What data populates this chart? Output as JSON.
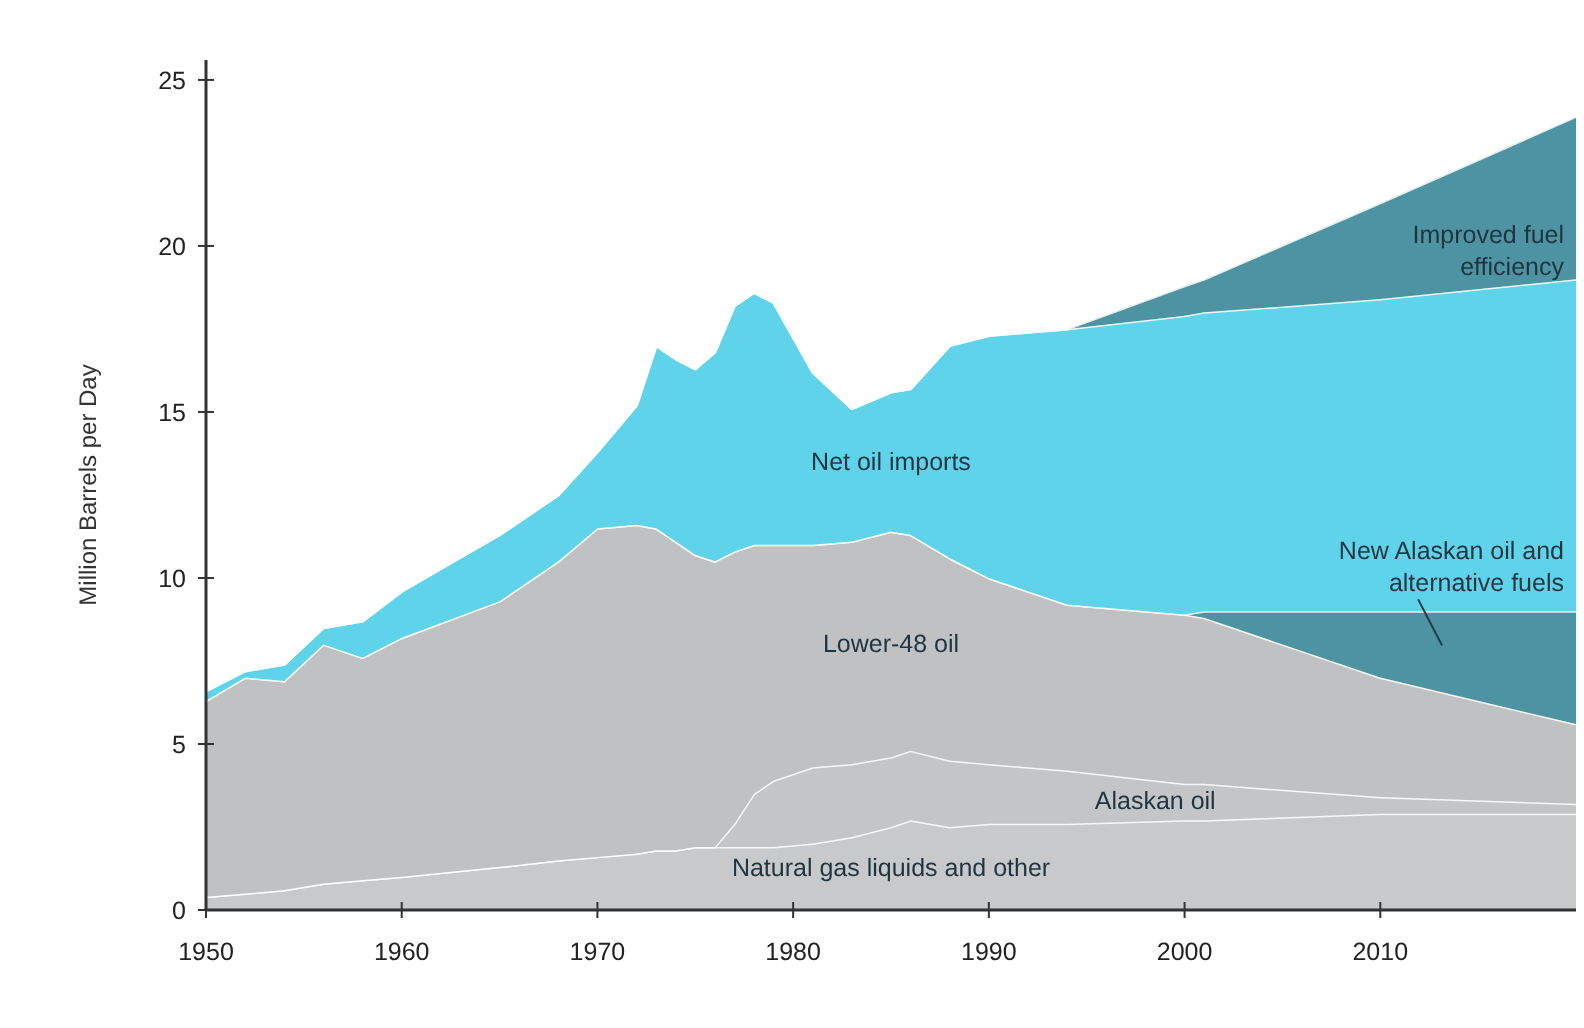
{
  "chart_data": {
    "type": "area",
    "stacked": true,
    "ylabel": "Million Barrels per Day",
    "x": [
      1950,
      1952,
      1954,
      1956,
      1958,
      1960,
      1965,
      1968,
      1970,
      1972,
      1973,
      1974,
      1975,
      1976,
      1977,
      1978,
      1979,
      1981,
      1983,
      1985,
      1986,
      1988,
      1990,
      1994,
      2000,
      2001,
      2010,
      2020
    ],
    "xlim": [
      1950,
      2020
    ],
    "xticks": [
      1950,
      1960,
      1970,
      1980,
      1990,
      2000,
      2010
    ],
    "ylim": [
      0,
      25.6
    ],
    "yticks": [
      0,
      5,
      10,
      15,
      20,
      25
    ],
    "series": [
      {
        "name": "Natural gas liquids and other",
        "color": "#c8c9ca",
        "values": [
          0.4,
          0.5,
          0.6,
          0.8,
          0.9,
          1.0,
          1.3,
          1.5,
          1.6,
          1.7,
          1.8,
          1.8,
          1.9,
          1.9,
          1.9,
          1.9,
          1.9,
          2.0,
          2.2,
          2.5,
          2.7,
          2.5,
          2.6,
          2.6,
          2.7,
          2.7,
          2.9,
          2.9
        ]
      },
      {
        "name": "Alaskan oil",
        "color": "#c4c5c6",
        "values": [
          0,
          0,
          0,
          0,
          0,
          0,
          0,
          0,
          0,
          0,
          0,
          0,
          0,
          0,
          0.7,
          1.6,
          2.0,
          2.3,
          2.2,
          2.1,
          2.1,
          2.0,
          1.8,
          1.6,
          1.1,
          1.1,
          0.5,
          0.3
        ]
      },
      {
        "name": "Lower-48 oil",
        "color": "#c0c1c2",
        "values": [
          5.9,
          6.5,
          6.3,
          7.2,
          6.7,
          7.2,
          8.0,
          9.0,
          9.9,
          9.9,
          9.7,
          9.3,
          8.8,
          8.6,
          8.2,
          7.5,
          7.1,
          6.7,
          6.7,
          6.8,
          6.5,
          6.1,
          5.6,
          5.0,
          5.1,
          5.0,
          3.6,
          2.4
        ]
      },
      {
        "name": "New Alaskan oil and alternative fuels",
        "color": "#4e93a2",
        "values": [
          0,
          0,
          0,
          0,
          0,
          0,
          0,
          0,
          0,
          0,
          0,
          0,
          0,
          0,
          0,
          0,
          0,
          0,
          0,
          0,
          0,
          0,
          0,
          0,
          0,
          0.2,
          2.0,
          3.4
        ]
      },
      {
        "name": "Net oil imports",
        "color": "#5fd3ea",
        "values": [
          0.3,
          0.2,
          0.5,
          0.5,
          1.1,
          1.4,
          2.0,
          2.0,
          2.3,
          3.6,
          5.5,
          5.5,
          5.6,
          6.3,
          7.4,
          7.6,
          7.3,
          5.2,
          4.0,
          4.2,
          4.4,
          6.4,
          7.3,
          8.3,
          9.0,
          9.0,
          9.4,
          10.0
        ]
      },
      {
        "name": "Improved fuel efficiency",
        "color": "#4e93a2",
        "values": [
          0,
          0,
          0,
          0,
          0,
          0,
          0,
          0,
          0,
          0,
          0,
          0,
          0,
          0,
          0,
          0,
          0,
          0,
          0,
          0,
          0,
          0,
          0,
          0,
          0.9,
          1.0,
          2.9,
          4.9
        ]
      }
    ]
  }
}
